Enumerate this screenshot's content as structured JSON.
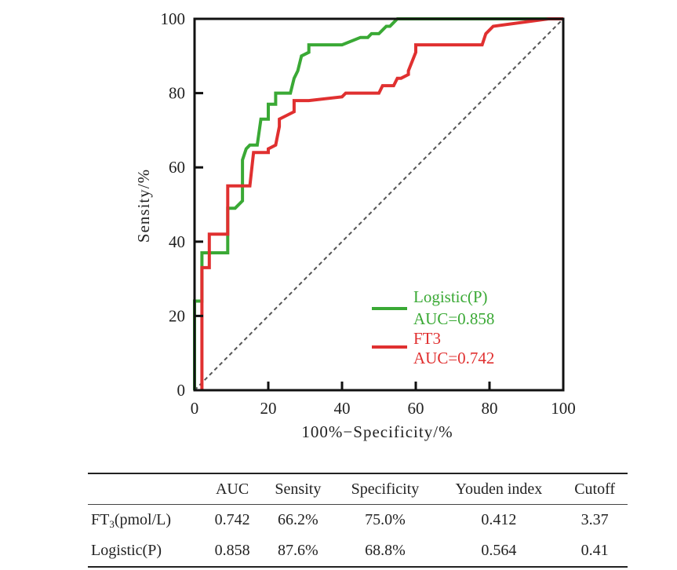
{
  "chart_data": {
    "type": "line",
    "xlabel": "100%−Specificity/%",
    "ylabel": "Sensity/%",
    "xlim": [
      0,
      100
    ],
    "ylim": [
      0,
      100
    ],
    "xticks": [
      0,
      20,
      40,
      60,
      80,
      100
    ],
    "yticks": [
      0,
      20,
      40,
      60,
      80,
      100
    ],
    "grid": false,
    "legend_position": "bottom-right",
    "reference_line": "diagonal dashed",
    "series": [
      {
        "name": "Logistic(P)",
        "auc_label": "AUC=0.858",
        "color": "#3aa935",
        "x": [
          0,
          0,
          2,
          2,
          5,
          5,
          9,
          9,
          11,
          13,
          13,
          14,
          15,
          17,
          18,
          18,
          20,
          20,
          22,
          22,
          24,
          26,
          27,
          28,
          29,
          31,
          31,
          40,
          45,
          47,
          48,
          50,
          51,
          52,
          53,
          54,
          55,
          56,
          96,
          100
        ],
        "y": [
          0,
          24,
          24,
          37,
          37,
          37,
          37,
          49,
          49,
          51,
          62,
          65,
          66,
          66,
          73,
          73,
          73,
          77,
          77,
          80,
          80,
          80,
          84,
          86,
          90,
          91,
          93,
          93,
          95,
          95,
          96,
          96,
          97,
          98,
          98,
          99,
          100,
          100,
          100,
          100
        ]
      },
      {
        "name": "FT3",
        "auc_label": "AUC=0.742",
        "color": "#e03030",
        "x": [
          2,
          2,
          4,
          4,
          9,
          9,
          13,
          15,
          16,
          20,
          20,
          22,
          23,
          23,
          25,
          27,
          27,
          29,
          31,
          40,
          41,
          50,
          51,
          54,
          55,
          56,
          58,
          58,
          60,
          60,
          78,
          79,
          81,
          96,
          100
        ],
        "y": [
          0,
          33,
          33,
          42,
          42,
          55,
          55,
          55,
          64,
          64,
          65,
          66,
          71,
          73,
          74,
          75,
          78,
          78,
          78,
          79,
          80,
          80,
          82,
          82,
          84,
          84,
          85,
          86,
          91,
          93,
          93,
          96,
          98,
          100,
          100
        ]
      }
    ]
  },
  "table": {
    "headers": [
      "",
      "AUC",
      "Sensity",
      "Specificity",
      "Youden index",
      "Cutoff"
    ],
    "rows": [
      {
        "name_main": "FT",
        "name_sub": "3",
        "name_rest": "(pmol/L)",
        "auc": "0.742",
        "sensity": "66.2%",
        "specificity": "75.0%",
        "youden": "0.412",
        "cutoff": "3.37"
      },
      {
        "name": "Logistic(P)",
        "auc": "0.858",
        "sensity": "87.6%",
        "specificity": "68.8%",
        "youden": "0.564",
        "cutoff": "0.41"
      }
    ]
  }
}
